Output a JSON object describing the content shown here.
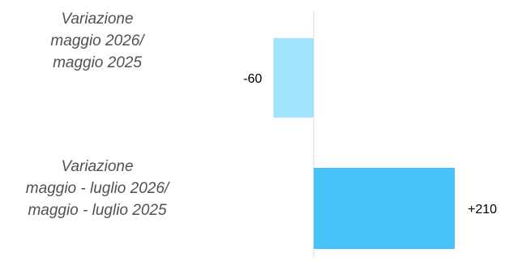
{
  "chart_data": {
    "type": "bar",
    "orientation": "horizontal",
    "categories": [
      [
        "Variazione",
        "maggio 2026/",
        "maggio 2025"
      ],
      [
        "Variazione",
        "maggio - luglio 2026/",
        "maggio - luglio 2025"
      ]
    ],
    "values": [
      -60,
      210
    ],
    "data_labels": [
      "-60",
      "+210"
    ],
    "colors": [
      "#a0e4fb",
      "#45c3f8"
    ],
    "axis_color": "#d9d9d9",
    "xlim": [
      -160,
      260
    ],
    "grid": false,
    "legend": "none"
  }
}
